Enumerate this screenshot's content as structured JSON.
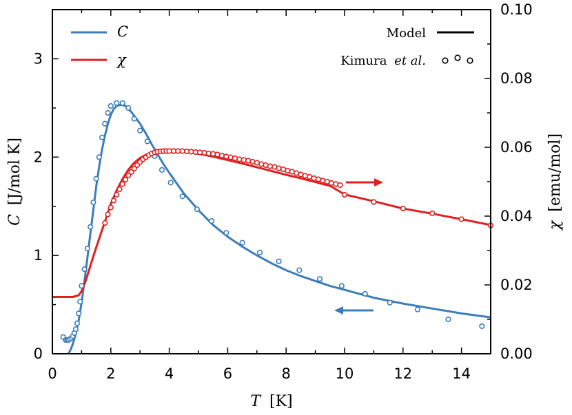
{
  "chart_data": {
    "type": "line",
    "xlabel_var": "T",
    "xlabel_unit": "[K]",
    "ylabel_left_var": "C",
    "ylabel_left_unit": "[J/mol K]",
    "ylabel_right_var": "χ",
    "ylabel_right_unit": "[emu/mol]",
    "xlim": [
      0,
      15
    ],
    "ylim_left": [
      0,
      3.5
    ],
    "ylim_right": [
      0,
      0.1
    ],
    "x_ticks": [
      "0",
      "2",
      "4",
      "6",
      "8",
      "10",
      "12",
      "14"
    ],
    "y_left_ticks": [
      "0",
      "1",
      "2",
      "3"
    ],
    "y_right_ticks": [
      "0.00",
      "0.02",
      "0.04",
      "0.06",
      "0.08",
      "0.10"
    ],
    "legend": {
      "series_C_symbol": "C",
      "series_chi_symbol": "χ",
      "model_label": "Model",
      "kimura_name": "Kimura",
      "kimura_etal": "et al."
    },
    "colors": {
      "C": "#3b7dbb",
      "chi": "#e02020"
    },
    "series": [
      {
        "name": "C",
        "axis": "left",
        "model": {
          "x": [
            0.55,
            0.62,
            0.7,
            0.8,
            0.9,
            1.0,
            1.1,
            1.2,
            1.3,
            1.4,
            1.5,
            1.6,
            1.7,
            1.8,
            1.9,
            2.0,
            2.1,
            2.2,
            2.3,
            2.4,
            2.5,
            2.6,
            2.7,
            2.8,
            3.0,
            3.2,
            3.4,
            3.6,
            3.8,
            4.0,
            4.5,
            5.0,
            5.5,
            6.0,
            6.5,
            7.0,
            7.5,
            8.0,
            8.5,
            9.0,
            9.5,
            10.0,
            11.0,
            12.0,
            13.0,
            14.0,
            15.0
          ],
          "y": [
            0.0,
            0.04,
            0.1,
            0.2,
            0.34,
            0.52,
            0.74,
            0.98,
            1.22,
            1.46,
            1.7,
            1.9,
            2.08,
            2.22,
            2.34,
            2.43,
            2.49,
            2.52,
            2.53,
            2.53,
            2.52,
            2.49,
            2.46,
            2.42,
            2.34,
            2.24,
            2.13,
            2.03,
            1.93,
            1.84,
            1.63,
            1.46,
            1.31,
            1.19,
            1.09,
            1.0,
            0.92,
            0.85,
            0.79,
            0.74,
            0.69,
            0.65,
            0.57,
            0.51,
            0.46,
            0.41,
            0.37
          ]
        },
        "data": {
          "x": [
            0.37,
            0.45,
            0.5,
            0.55,
            0.6,
            0.65,
            0.7,
            0.75,
            0.8,
            0.85,
            0.9,
            0.95,
            1.0,
            1.1,
            1.2,
            1.3,
            1.4,
            1.5,
            1.6,
            1.7,
            1.8,
            1.9,
            2.0,
            2.2,
            2.4,
            2.6,
            2.8,
            3.0,
            3.25,
            3.5,
            3.75,
            4.05,
            4.45,
            4.95,
            5.45,
            5.95,
            6.5,
            7.1,
            7.75,
            8.45,
            9.15,
            9.9,
            10.7,
            11.55,
            12.5,
            13.55,
            14.7
          ],
          "y": [
            0.17,
            0.14,
            0.14,
            0.14,
            0.15,
            0.16,
            0.18,
            0.21,
            0.25,
            0.31,
            0.41,
            0.53,
            0.69,
            0.86,
            1.07,
            1.29,
            1.54,
            1.78,
            2.0,
            2.2,
            2.34,
            2.45,
            2.52,
            2.55,
            2.55,
            2.5,
            2.39,
            2.27,
            2.16,
            2.01,
            1.87,
            1.74,
            1.6,
            1.47,
            1.35,
            1.23,
            1.13,
            1.03,
            0.94,
            0.85,
            0.76,
            0.69,
            0.61,
            0.52,
            0.45,
            0.35,
            0.28
          ]
        }
      },
      {
        "name": "χ",
        "axis": "right",
        "model": {
          "x": [
            0.0,
            0.7,
            0.9,
            1.0,
            1.1,
            1.2,
            1.4,
            1.6,
            1.8,
            2.0,
            2.2,
            2.4,
            2.6,
            2.8,
            3.0,
            3.2,
            3.4,
            3.6,
            3.8,
            4.0,
            4.4,
            4.8,
            5.2,
            5.6,
            6.0,
            6.5,
            7.0,
            7.5,
            8.0,
            8.5,
            9.0,
            9.5,
            10.0,
            11.0,
            12.0,
            13.0,
            14.0,
            15.0
          ],
          "y": [
            0.0165,
            0.0165,
            0.017,
            0.0182,
            0.0202,
            0.0228,
            0.0283,
            0.0334,
            0.0384,
            0.0436,
            0.0475,
            0.0508,
            0.0535,
            0.0555,
            0.0569,
            0.0578,
            0.0584,
            0.0587,
            0.0589,
            0.0589,
            0.0588,
            0.0584,
            0.0578,
            0.0571,
            0.0563,
            0.0553,
            0.0542,
            0.0531,
            0.052,
            0.051,
            0.0499,
            0.0488,
            0.0463,
            0.0443,
            0.0422,
            0.0407,
            0.0391,
            0.0374
          ]
        },
        "data": {
          "x": [
            1.8,
            1.9,
            2.0,
            2.1,
            2.2,
            2.3,
            2.4,
            2.5,
            2.6,
            2.7,
            2.8,
            2.9,
            3.0,
            3.1,
            3.2,
            3.3,
            3.4,
            3.5,
            3.6,
            3.7,
            3.8,
            3.9,
            4.0,
            4.15,
            4.3,
            4.45,
            4.6,
            4.75,
            4.9,
            5.05,
            5.2,
            5.35,
            5.5,
            5.65,
            5.8,
            5.95,
            6.1,
            6.25,
            6.4,
            6.55,
            6.7,
            6.85,
            7.0,
            7.15,
            7.3,
            7.45,
            7.6,
            7.75,
            7.9,
            8.05,
            8.2,
            8.35,
            8.5,
            8.65,
            8.8,
            8.95,
            9.1,
            9.25,
            9.4,
            9.55,
            9.7,
            9.85,
            10.0,
            11.0,
            12.0,
            13.0,
            14.0,
            15.0
          ],
          "y": [
            0.038,
            0.0405,
            0.0425,
            0.0445,
            0.0462,
            0.0478,
            0.0493,
            0.0506,
            0.0518,
            0.0528,
            0.0538,
            0.0548,
            0.0557,
            0.0565,
            0.0571,
            0.0577,
            0.0582,
            0.0585,
            0.0587,
            0.0588,
            0.0589,
            0.0589,
            0.0589,
            0.0589,
            0.0589,
            0.0589,
            0.0588,
            0.0587,
            0.0586,
            0.0585,
            0.0584,
            0.0582,
            0.0581,
            0.0579,
            0.0576,
            0.0573,
            0.0571,
            0.0568,
            0.0565,
            0.0563,
            0.0561,
            0.0558,
            0.0555,
            0.0551,
            0.0548,
            0.0545,
            0.0543,
            0.0539,
            0.0536,
            0.0532,
            0.0529,
            0.0525,
            0.0521,
            0.0517,
            0.0514,
            0.051,
            0.0507,
            0.0503,
            0.05,
            0.0496,
            0.0493,
            0.049,
            0.0462,
            0.0441,
            0.0422,
            0.0408,
            0.0391,
            0.0373
          ]
        }
      }
    ]
  }
}
